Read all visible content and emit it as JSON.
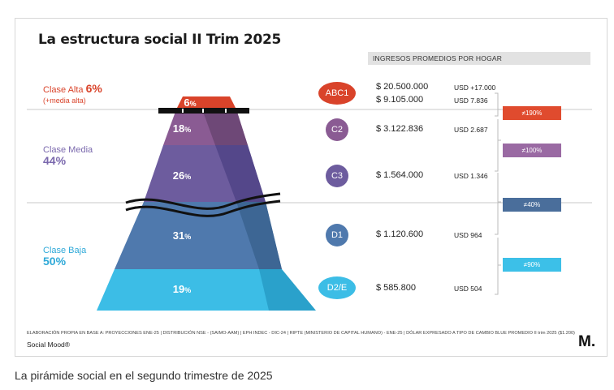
{
  "title": "La estructura social II Trim 2025",
  "income_header": "INGRESOS PROMEDIOS POR HOGAR",
  "classes": {
    "alta": {
      "label": "Clase Alta",
      "pct": "6%",
      "sub": "(+media alta)"
    },
    "media": {
      "label": "Clase Media",
      "pct": "44%"
    },
    "baja": {
      "label": "Clase Baja",
      "pct": "50%"
    }
  },
  "segments": [
    {
      "id": "abc1",
      "num": "6",
      "unit": "%",
      "badge": "ABC1",
      "ars": "$ 20.500.000",
      "usd": "USD +17.000",
      "ars2": "$ 9.105.000",
      "usd2": "USD 7.836",
      "color": "#d9432a"
    },
    {
      "id": "c2",
      "num": "18",
      "unit": "%",
      "badge": "C2",
      "ars": "$ 3.122.836",
      "usd": "USD 2.687",
      "color": "#8a5b93"
    },
    {
      "id": "c3",
      "num": "26",
      "unit": "%",
      "badge": "C3",
      "ars": "$ 1.564.000",
      "usd": "USD 1.346",
      "color": "#6d5c9e"
    },
    {
      "id": "d1",
      "num": "31",
      "unit": "%",
      "badge": "D1",
      "ars": "$ 1.120.600",
      "usd": "USD 964",
      "color": "#4f79ad"
    },
    {
      "id": "d2e",
      "num": "19",
      "unit": "%",
      "badge": "D2/E",
      "ars": "$ 585.800",
      "usd": "USD 504",
      "color": "#3cbde6"
    }
  ],
  "diffs": [
    {
      "label": "≠190%",
      "color": "#e04b2e"
    },
    {
      "label": "≠100%",
      "color": "#9a6aa3"
    },
    {
      "label": "≠40%",
      "color": "#4a6e9b"
    },
    {
      "label": "≠90%",
      "color": "#3cc0e8"
    }
  ],
  "footnote": "ELABORACIÓN PROPIA EN BASE A: PROYECCIONES ENE-25 | DISTRIBUCIÓN NSE - (SAIMO-AAM) | EPH INDEC - DIC-24 | RIPTE (MINISTERIO DE CAPITAL HUMANO) - ENE-25 | DÓLAR EXPRESADO A TIPO DE CAMBIO BLUE PROMEDIO II trim 2025 ($1.200)",
  "brand": "Social Mood®",
  "logo": "M.",
  "caption": "La pirámide social en el segundo trimestre de 2025"
}
